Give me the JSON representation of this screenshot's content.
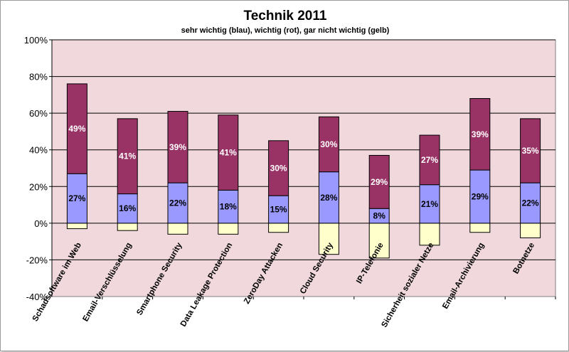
{
  "chart_data": {
    "type": "bar",
    "stacked": true,
    "title": "Technik 2011",
    "subtitle": "sehr wichtig (blau),  wichtig (rot), gar nicht wichtig (gelb)",
    "categories": [
      "Schadsoftware im Web",
      "Email-Verschlüsselung",
      "Smartphone Security",
      "Data Leakage Protection",
      "ZeroDay Attacken",
      "Cloud Security",
      "IP-Telefonie",
      "Sicherheit sozialer Netze",
      "Email-Archivierung",
      "Botnetze"
    ],
    "series": [
      {
        "color": "#9999ff",
        "values": [
          27,
          16,
          22,
          18,
          15,
          28,
          8,
          21,
          29,
          22
        ],
        "labels": [
          "27%",
          "16%",
          "22%",
          "18%",
          "15%",
          "28%",
          "8%",
          "21%",
          "29%",
          "22%"
        ]
      },
      {
        "color": "#993366",
        "values": [
          49,
          41,
          39,
          41,
          30,
          30,
          29,
          27,
          39,
          35
        ],
        "labels": [
          "49%",
          "41%",
          "39%",
          "41%",
          "30%",
          "30%",
          "29%",
          "27%",
          "39%",
          "35%"
        ]
      },
      {
        "color": "#ffffcc",
        "values": [
          -3,
          -4,
          -6,
          -6,
          -5,
          -17,
          -19,
          -12,
          -5,
          -8
        ]
      }
    ],
    "ylim": [
      -40,
      100
    ],
    "yticks": [
      -40,
      -20,
      0,
      20,
      40,
      60,
      80,
      100
    ],
    "ytick_labels": [
      "-40%",
      "-20%",
      "0%",
      "20%",
      "40%",
      "60%",
      "80%",
      "100%"
    ],
    "grid": true,
    "plot_background": "#f0d8dc",
    "xlabel": "",
    "ylabel": ""
  }
}
